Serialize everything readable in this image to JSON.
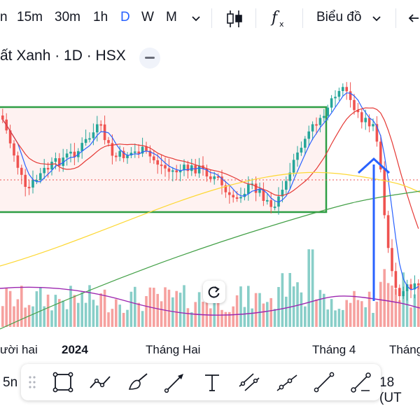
{
  "toolbar": {
    "timeframes": [
      {
        "label": "n",
        "active": false
      },
      {
        "label": "15m",
        "active": false
      },
      {
        "label": "30m",
        "active": false
      },
      {
        "label": "1h",
        "active": false
      },
      {
        "label": "D",
        "active": true
      },
      {
        "label": "W",
        "active": false
      },
      {
        "label": "M",
        "active": false
      }
    ],
    "chart_type_menu": "Biểu đồ",
    "icons": [
      "chevron-down-icon",
      "candles-icon",
      "indicators-fx-icon",
      "chevron-down-icon",
      "back-arrow-icon"
    ]
  },
  "chart_title": "ất Xanh · 1D · HSX",
  "x_axis_labels": [
    "ười hai",
    "2024",
    "Tháng Hai",
    "Tháng 4",
    "Tháng"
  ],
  "bottom": {
    "left_label": "5n",
    "right_label": "18 (UT",
    "drawing_tools": [
      "rectangle-icon",
      "trend-path-icon",
      "brush-icon",
      "arrow-icon",
      "text-tool-icon",
      "parallel-channel-icon",
      "ray-icon",
      "line-icon",
      "fib-icon"
    ]
  },
  "colors": {
    "up": "#26a69a",
    "down": "#ef5350",
    "box": "#2e9e44",
    "annotation_arrow": "#2962ff",
    "ma_short": "#2962ff",
    "ma_mid": "#e53935",
    "ma_long": "#fdd835",
    "ma_xlong": "#43a047",
    "volume_ma": "#9c27b0",
    "active_timeframe": "#2962ff"
  }
}
